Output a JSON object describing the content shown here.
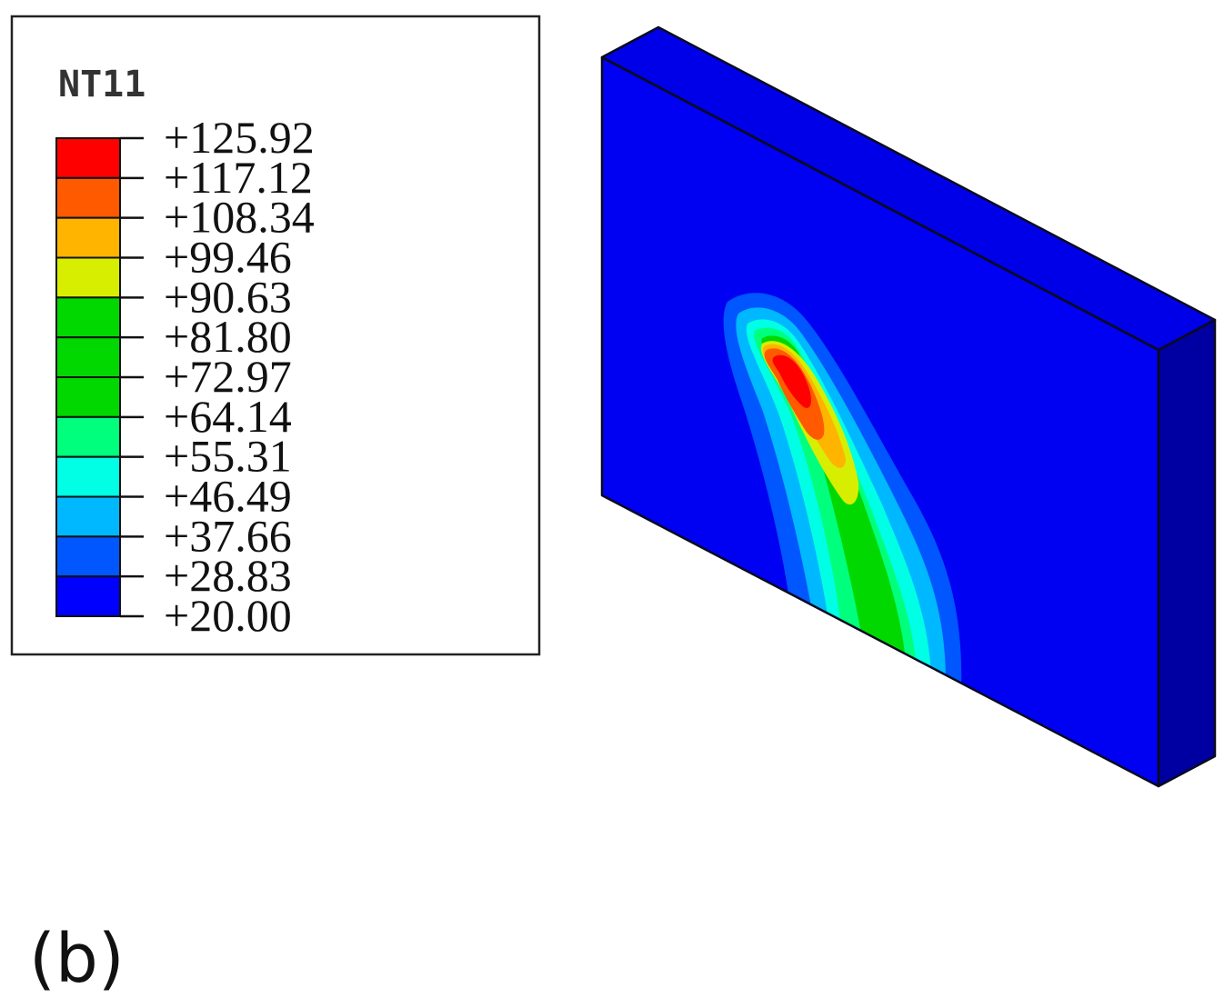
{
  "legend": {
    "title": "NT11",
    "labels": [
      "+125.92",
      "+117.12",
      "+108.34",
      "+99.46",
      "+90.63",
      "+81.80",
      "+72.97",
      "+64.14",
      "+55.31",
      "+46.49",
      "+37.66",
      "+28.83",
      "+20.00"
    ],
    "band_colors": [
      "#ff0000",
      "#ff5a00",
      "#ffb400",
      "#d8ee00",
      "#00d800",
      "#00d800",
      "#00d800",
      "#00ff7c",
      "#00ffe4",
      "#00b8ff",
      "#0056ff",
      "#0000ff"
    ]
  },
  "panel_label": "(b)",
  "model": {
    "front_color": "#0000f2",
    "top_color": "#0000e8",
    "side_color": "#0000a2",
    "edge_color": "#0a0a20"
  }
}
